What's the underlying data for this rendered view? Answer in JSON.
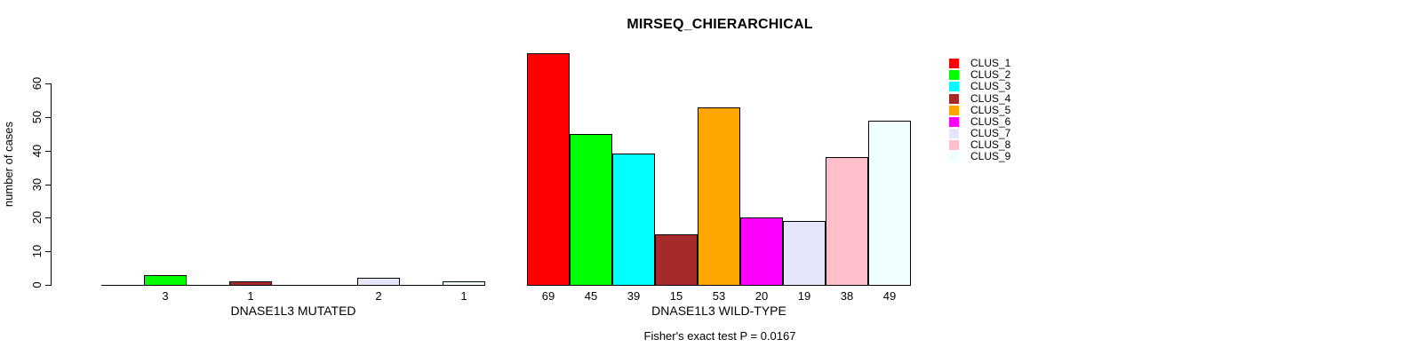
{
  "chart_data": {
    "type": "bar",
    "title": "MIRSEQ_CHIERARCHICAL",
    "ylabel": "number of cases",
    "ylim": [
      0,
      60
    ],
    "yticks": [
      0,
      10,
      20,
      30,
      40,
      50,
      60
    ],
    "grid": false,
    "legend_position": "right-outside",
    "clusters": [
      "CLUS_1",
      "CLUS_2",
      "CLUS_3",
      "CLUS_4",
      "CLUS_5",
      "CLUS_6",
      "CLUS_7",
      "CLUS_8",
      "CLUS_9"
    ],
    "colors": [
      "#FF0000",
      "#00FF00",
      "#00FFFF",
      "#A52A2A",
      "#FFA500",
      "#FF00FF",
      "#E6E6FA",
      "#FFC0CB",
      "#F0FFFF"
    ],
    "bar_border_color": "#000000",
    "groups": [
      {
        "label": "DNASE1L3 MUTATED",
        "values": [
          0,
          3,
          0,
          1,
          0,
          0,
          2,
          0,
          1
        ],
        "bar_labels": [
          "",
          "3",
          "",
          "1",
          "",
          "",
          "2",
          "",
          "1"
        ]
      },
      {
        "label": "DNASE1L3 WILD-TYPE",
        "values": [
          69,
          45,
          39,
          15,
          53,
          20,
          19,
          38,
          49
        ],
        "bar_labels": [
          "69",
          "45",
          "39",
          "15",
          "53",
          "20",
          "19",
          "38",
          "49"
        ]
      }
    ],
    "annotation": "Fisher's exact test P = 0.0167"
  }
}
